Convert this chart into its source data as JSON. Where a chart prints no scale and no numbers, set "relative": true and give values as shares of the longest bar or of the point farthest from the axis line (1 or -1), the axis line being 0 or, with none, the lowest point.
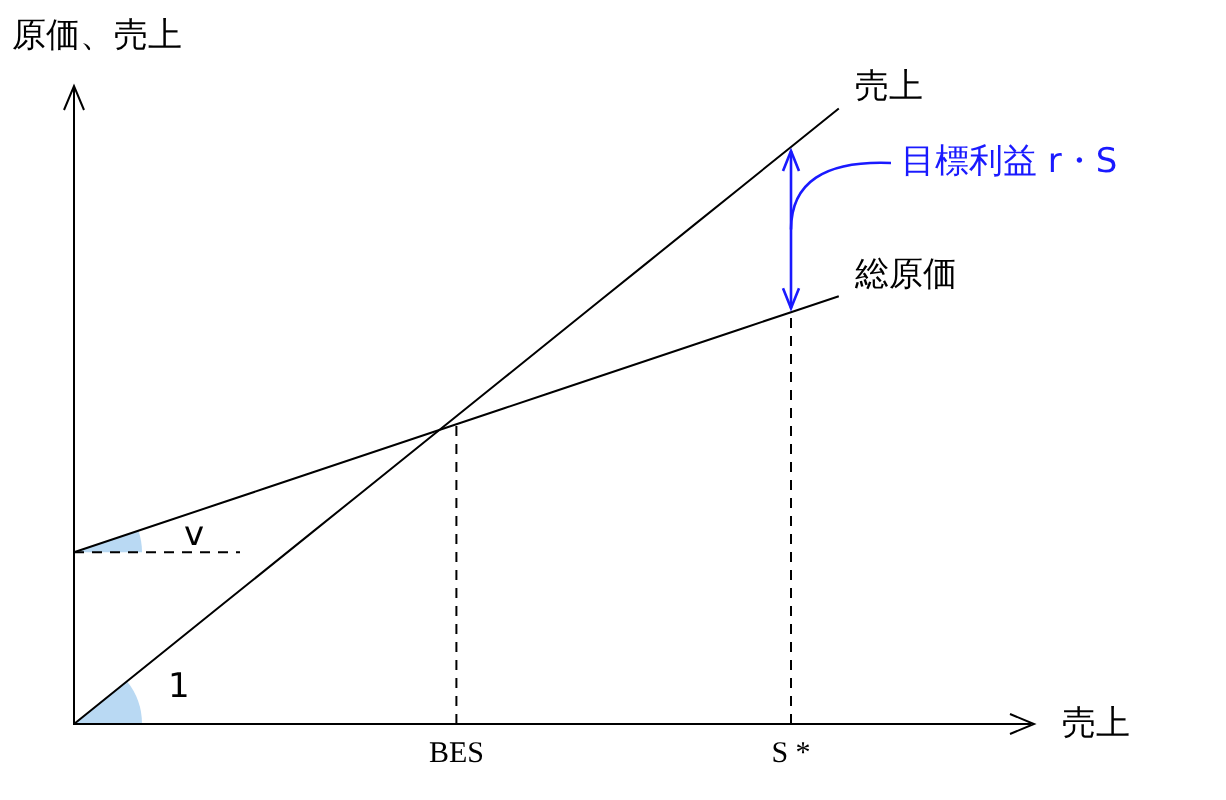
{
  "chart_data": {
    "type": "line",
    "relative": true,
    "ylabel": "原価、売上",
    "xlabel": "売上",
    "categories": [
      null,
      null,
      null,
      null,
      null,
      null,
      null,
      null,
      "BES",
      null,
      null,
      null,
      null,
      null,
      null,
      "S *",
      null,
      null,
      null,
      null,
      null
    ],
    "series": [
      {
        "name": "売上",
        "color": "#000000",
        "values": [
          0,
          0.0625,
          0.125,
          0.1875,
          0.25,
          0.3125,
          0.375,
          0.4375,
          0.5,
          0.5625,
          0.625,
          0.6875,
          0.75,
          0.8125,
          0.875,
          0.9375,
          1,
          null,
          null,
          null,
          null
        ]
      },
      {
        "name": "総原価",
        "color": "#000000",
        "values": [
          0.279,
          0.305,
          0.331,
          0.357,
          0.383,
          0.409,
          0.435,
          0.461,
          0.487,
          0.513,
          0.539,
          0.565,
          0.591,
          0.617,
          0.643,
          0.669,
          0.695,
          null,
          null,
          null,
          null
        ]
      }
    ],
    "ref_lines": [
      {
        "axis": "x",
        "value": "BES",
        "line_style": "dashed"
      },
      {
        "axis": "x",
        "value": "S *",
        "line_style": "dashed"
      },
      {
        "axis": "y",
        "value": 0.279,
        "line_style": "dashed"
      }
    ],
    "annotations": [
      "目標利益 r・S",
      "v",
      "1"
    ],
    "grid": false,
    "legend": false,
    "marker": "none"
  }
}
